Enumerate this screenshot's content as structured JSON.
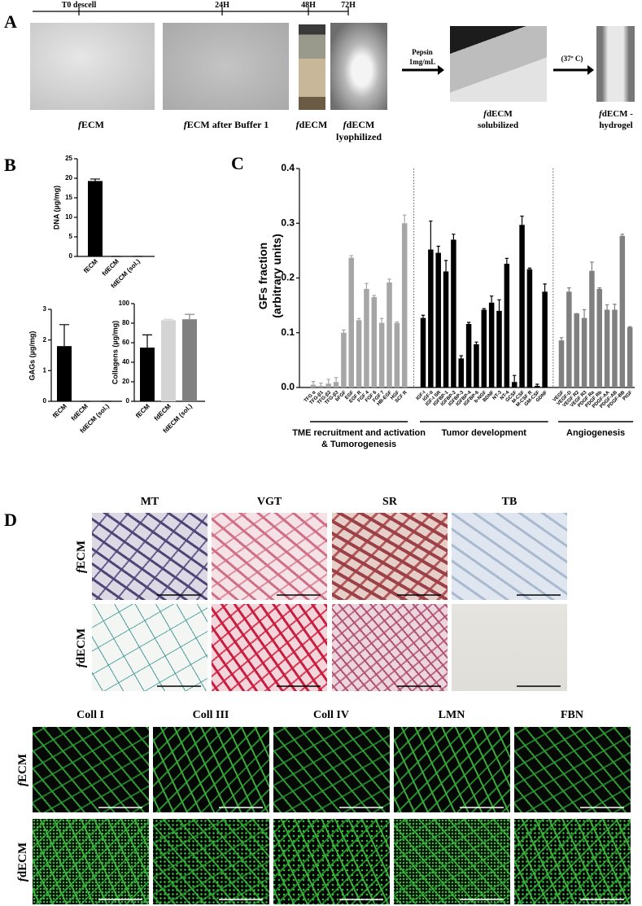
{
  "panel_a": {
    "label": "A",
    "timeline": [
      "T0 descell",
      "24H",
      "48H",
      "72H"
    ],
    "captions": [
      "fECM",
      "fECM after Buffer 1",
      "fdECM",
      "fdECM\nlyophilized"
    ],
    "pepsin": "Pepsin\n1mg/mL",
    "solubilized": "fdECM\nsolubilized",
    "temperature": "(37º C)",
    "hydrogel": "fdECM -\nhydrogel"
  },
  "panel_b": {
    "label": "B"
  },
  "panel_c": {
    "label": "C"
  },
  "chart_data": [
    {
      "type": "bar",
      "y_label": "DNA (µg/mg)",
      "categories": [
        "fECM",
        "fdECM",
        "fdECM (sol.)"
      ],
      "values": [
        19.3,
        0,
        0
      ],
      "errors": [
        0.5,
        0,
        0
      ],
      "color": "#000000",
      "ylim": [
        0,
        25
      ],
      "yticks": [
        0,
        5,
        10,
        15,
        20,
        25
      ]
    },
    {
      "type": "bar",
      "y_label": "GAGs (µg/mg)",
      "categories": [
        "fECM",
        "fdECM",
        "fdECM (sol.)"
      ],
      "values": [
        1.8,
        0,
        0
      ],
      "errors": [
        0.7,
        0,
        0
      ],
      "color": "#000000",
      "ylim": [
        0,
        3
      ],
      "yticks": [
        0,
        1,
        2,
        3
      ]
    },
    {
      "type": "bar",
      "y_label": "Collagens (µg/mg)",
      "categories": [
        "fECM",
        "fdECM",
        "fdECM (sol.)"
      ],
      "values": [
        55,
        83,
        84
      ],
      "errors": [
        13,
        1,
        5
      ],
      "colors": [
        "#000000",
        "#d4d4d4",
        "#808080"
      ],
      "ylim": [
        0,
        100
      ],
      "yticks": [
        0,
        20,
        40,
        60,
        80,
        100
      ]
    },
    {
      "type": "bar",
      "y_label": "GFs fraction\n(arbitrary units)",
      "ylim": [
        0,
        0.4
      ],
      "yticks": [
        {
          "value": 0,
          "label": "0.0"
        },
        0.1,
        0.2,
        0.3,
        0.4
      ],
      "series": [
        {
          "name": "TME recruitment  and activation\n& Tumorogenesis",
          "color": "#a6a6a6",
          "categories": [
            "TFG α",
            "TFG-β1",
            "TFG-β2",
            "TFG-β3",
            "bFGF",
            "EGF",
            "EGF R",
            "FGF 4",
            "FGF 6",
            "FGF 7",
            "HB-EGF",
            "HGF",
            "SCF R"
          ],
          "values": [
            0.005,
            0.003,
            0.007,
            0.01,
            0.1,
            0.237,
            0.123,
            0.18,
            0.165,
            0.118,
            0.192,
            0.118,
            0.3
          ],
          "errors": [
            0.006,
            0.005,
            0.008,
            0.008,
            0.005,
            0.004,
            0.003,
            0.01,
            0.003,
            0.008,
            0.006,
            0.002,
            0.015
          ]
        },
        {
          "name": "Tumor development",
          "color": "#000000",
          "categories": [
            "IGF-I",
            "IGF-II",
            "IGF-I SR",
            "IGFBP-1",
            "IGFBP-2",
            "IGFBP-3",
            "IGFBP-4",
            "IGFBP-6",
            "b-NGF",
            "BDNF",
            "NT-3",
            "NT-4",
            "GCSF",
            "M-CSF",
            "M-CSF R",
            "GM-CSF",
            "GDNF"
          ],
          "values": [
            0.127,
            0.252,
            0.246,
            0.212,
            0.27,
            0.053,
            0.116,
            0.079,
            0.142,
            0.155,
            0.14,
            0.226,
            0.01,
            0.297,
            0.216,
            0.003,
            0.175
          ],
          "errors": [
            0.005,
            0.052,
            0.012,
            0.02,
            0.01,
            0.005,
            0.003,
            0.004,
            0.002,
            0.012,
            0.02,
            0.01,
            0.012,
            0.016,
            0.002,
            0.003,
            0.014
          ]
        },
        {
          "name": "Angiogenesis",
          "color": "#808080",
          "categories": [
            "VEGF",
            "VEGF-D",
            "VEGF R2",
            "VEGF R3",
            "PDGF Ra",
            "PDGF Rb",
            "PDGF-AA",
            "PDGF-AB",
            "PDGF-BB",
            "PIGF"
          ],
          "values": [
            0.086,
            0.175,
            0.135,
            0.127,
            0.213,
            0.18,
            0.142,
            0.142,
            0.277,
            0.11
          ],
          "errors": [
            0.005,
            0.007,
            0,
            0.015,
            0.016,
            0.002,
            0.009,
            0.01,
            0.003,
            0.001
          ]
        }
      ]
    }
  ],
  "panel_d": {
    "label": "D",
    "stains": [
      "MT",
      "VGT",
      "SR",
      "TB"
    ],
    "rows": [
      "fECM",
      "fdECM"
    ],
    "if_stains": [
      "Coll I",
      "Coll  III",
      "Coll IV",
      "LMN",
      "FBN"
    ]
  }
}
